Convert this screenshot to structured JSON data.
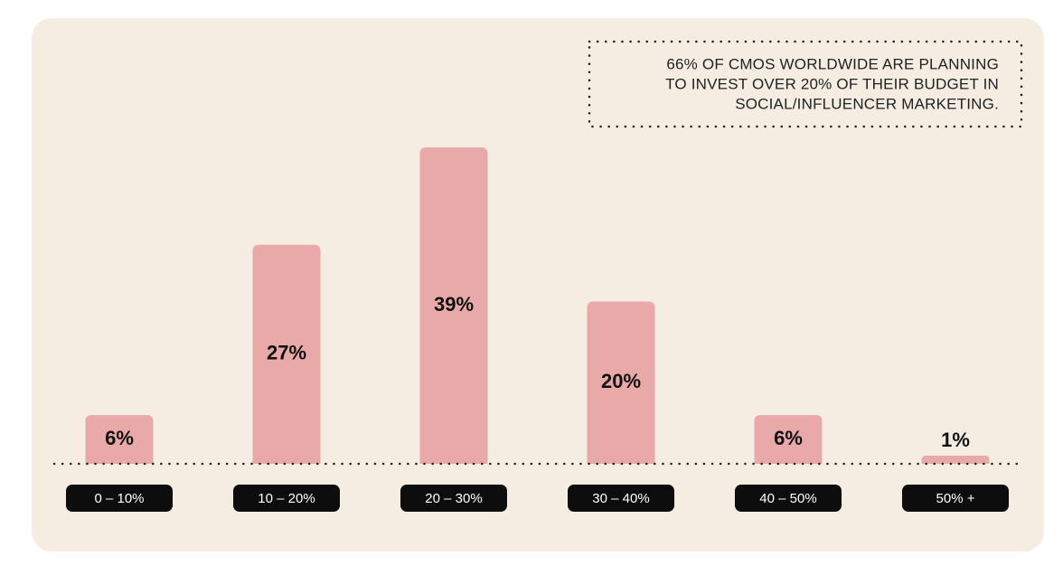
{
  "chart_data": {
    "type": "bar",
    "annotation": [
      "66% OF CMOS WORLDWIDE ARE PLANNING",
      "TO INVEST OVER 20% OF THEIR BUDGET IN",
      "SOCIAL/INFLUENCER MARKETING."
    ],
    "categories": [
      "0 – 10%",
      "10 – 20%",
      "20 – 30%",
      "30 – 40%",
      "40 – 50%",
      "50% +"
    ],
    "values": [
      6,
      27,
      39,
      20,
      6,
      1
    ],
    "value_labels": [
      "6%",
      "27%",
      "39%",
      "20%",
      "6%",
      "1%"
    ],
    "color": "#e8a9a8"
  }
}
